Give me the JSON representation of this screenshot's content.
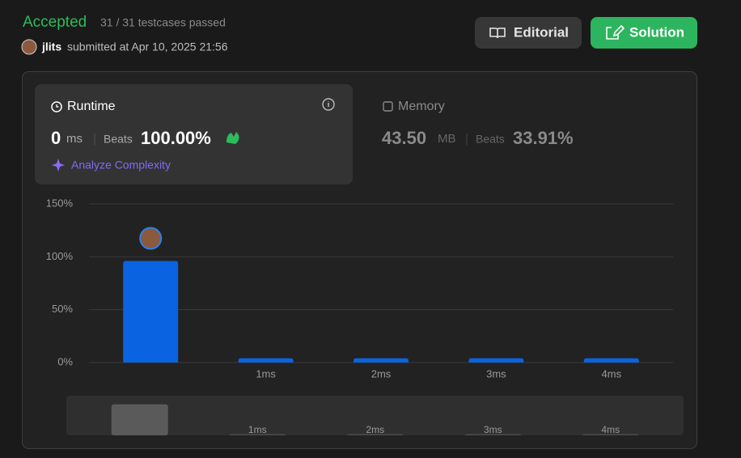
{
  "header": {
    "status": "Accepted",
    "testcases": "31 / 31 testcases passed",
    "user": "jlits",
    "submitted": "submitted at Apr 10, 2025 21:56"
  },
  "buttons": [
    "Editorial",
    "Solution"
  ],
  "runtime": {
    "label": "Runtime",
    "value": "0",
    "unit": "ms",
    "beats_label": "Beats",
    "beats": "100.00%",
    "analyze": "Analyze Complexity"
  },
  "memory": {
    "label": "Memory",
    "value": "43.50",
    "unit": "MB",
    "beats_label": "Beats",
    "beats": "33.91%"
  },
  "chart_data": {
    "type": "bar",
    "categories": [
      null,
      "1ms",
      "2ms",
      "3ms",
      "4ms"
    ],
    "values": [
      96,
      4,
      4,
      4,
      4
    ],
    "color": "#0a63e0",
    "ylim": [
      0,
      150
    ],
    "yticks": [
      {
        "value": 0,
        "label": "0%"
      },
      {
        "value": 50,
        "label": "50%"
      },
      {
        "value": 100,
        "label": "100%"
      },
      {
        "value": 150,
        "label": "150%"
      }
    ],
    "grid": true
  }
}
